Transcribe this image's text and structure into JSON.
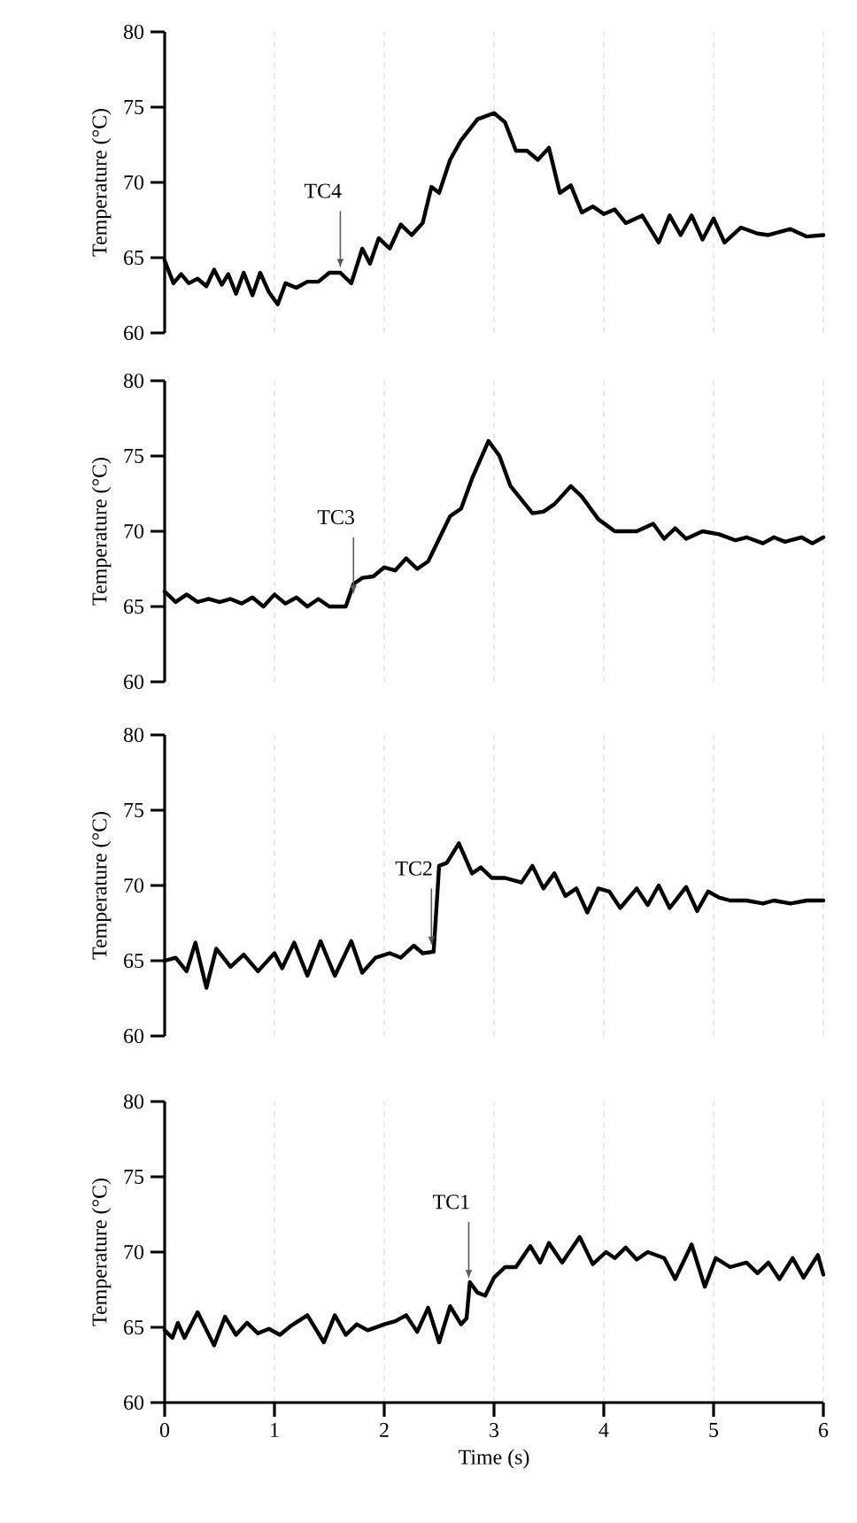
{
  "chart_data": [
    {
      "type": "line",
      "ylabel": "Temperature (°C)",
      "xlim": [
        0,
        6
      ],
      "xticks": [
        0,
        1,
        2,
        3,
        4,
        5,
        6
      ],
      "ylim": [
        60,
        80
      ],
      "yticks": [
        60,
        65,
        70,
        75,
        80
      ],
      "grid": "x",
      "tick_labels": "y",
      "annotations": [
        {
          "text": "TC4",
          "x": 1.6,
          "y": 64.3
        }
      ],
      "series": [
        {
          "color": "#000000",
          "x": [
            0,
            0.08,
            0.15,
            0.22,
            0.3,
            0.38,
            0.45,
            0.52,
            0.58,
            0.65,
            0.72,
            0.8,
            0.87,
            0.95,
            1.03,
            1.1,
            1.2,
            1.3,
            1.4,
            1.5,
            1.6,
            1.7,
            1.8,
            1.87,
            1.95,
            2.05,
            2.15,
            2.25,
            2.35,
            2.43,
            2.5,
            2.6,
            2.7,
            2.85,
            3.0,
            3.1,
            3.2,
            3.3,
            3.4,
            3.5,
            3.6,
            3.7,
            3.8,
            3.9,
            4.0,
            4.1,
            4.2,
            4.35,
            4.5,
            4.6,
            4.7,
            4.8,
            4.9,
            5.0,
            5.1,
            5.25,
            5.4,
            5.5,
            5.7,
            5.85,
            6.0
          ],
          "values": [
            64.8,
            63.3,
            63.9,
            63.3,
            63.6,
            63.1,
            64.2,
            63.2,
            63.9,
            62.6,
            64.0,
            62.5,
            64.0,
            62.7,
            61.9,
            63.3,
            63.0,
            63.4,
            63.4,
            64.0,
            64.0,
            63.3,
            65.6,
            64.6,
            66.3,
            65.6,
            67.2,
            66.5,
            67.3,
            69.7,
            69.3,
            71.5,
            72.8,
            74.2,
            74.6,
            74.0,
            72.1,
            72.1,
            71.5,
            72.3,
            69.3,
            69.8,
            68.0,
            68.4,
            67.9,
            68.2,
            67.3,
            67.8,
            66.0,
            67.8,
            66.5,
            67.8,
            66.2,
            67.6,
            66.0,
            67.0,
            66.6,
            66.5,
            66.9,
            66.4,
            66.5
          ]
        }
      ]
    },
    {
      "type": "line",
      "ylabel": "Temperature (°C)",
      "xlim": [
        0,
        6
      ],
      "xticks": [
        0,
        1,
        2,
        3,
        4,
        5,
        6
      ],
      "ylim": [
        60,
        80
      ],
      "yticks": [
        60,
        65,
        70,
        75,
        80
      ],
      "grid": "x",
      "tick_labels": "y",
      "annotations": [
        {
          "text": "TC3",
          "x": 1.72,
          "y": 65.8
        }
      ],
      "series": [
        {
          "color": "#000000",
          "x": [
            0,
            0.1,
            0.2,
            0.3,
            0.4,
            0.5,
            0.6,
            0.7,
            0.8,
            0.9,
            1.0,
            1.1,
            1.2,
            1.3,
            1.4,
            1.5,
            1.65,
            1.72,
            1.8,
            1.9,
            2.0,
            2.1,
            2.2,
            2.3,
            2.4,
            2.5,
            2.6,
            2.7,
            2.8,
            2.95,
            3.05,
            3.15,
            3.35,
            3.45,
            3.55,
            3.7,
            3.8,
            3.95,
            4.1,
            4.3,
            4.45,
            4.55,
            4.65,
            4.75,
            4.9,
            5.05,
            5.2,
            5.3,
            5.45,
            5.55,
            5.65,
            5.8,
            5.9,
            6.0
          ],
          "values": [
            66.0,
            65.3,
            65.8,
            65.3,
            65.5,
            65.3,
            65.5,
            65.2,
            65.6,
            65.0,
            65.8,
            65.2,
            65.6,
            65.0,
            65.5,
            65.0,
            65.0,
            66.5,
            66.9,
            67.0,
            67.6,
            67.4,
            68.2,
            67.5,
            68.0,
            69.5,
            71.0,
            71.5,
            73.5,
            76.0,
            75.0,
            73.0,
            71.2,
            71.3,
            71.8,
            73.0,
            72.3,
            70.8,
            70.0,
            70.0,
            70.5,
            69.5,
            70.2,
            69.5,
            70.0,
            69.8,
            69.4,
            69.6,
            69.2,
            69.6,
            69.3,
            69.6,
            69.2,
            69.6
          ]
        }
      ]
    },
    {
      "type": "line",
      "ylabel": "Temperature (°C)",
      "xlim": [
        0,
        6
      ],
      "xticks": [
        0,
        1,
        2,
        3,
        4,
        5,
        6
      ],
      "ylim": [
        60,
        80
      ],
      "yticks": [
        60,
        65,
        70,
        75,
        80
      ],
      "grid": "x",
      "tick_labels": "y",
      "annotations": [
        {
          "text": "TC2",
          "x": 2.43,
          "y": 66.0
        }
      ],
      "series": [
        {
          "color": "#000000",
          "x": [
            0,
            0.1,
            0.2,
            0.28,
            0.38,
            0.47,
            0.6,
            0.72,
            0.85,
            1.0,
            1.07,
            1.18,
            1.3,
            1.42,
            1.55,
            1.7,
            1.8,
            1.92,
            2.05,
            2.15,
            2.27,
            2.35,
            2.45,
            2.5,
            2.57,
            2.68,
            2.8,
            2.88,
            2.98,
            3.1,
            3.25,
            3.35,
            3.45,
            3.55,
            3.65,
            3.75,
            3.85,
            3.95,
            4.05,
            4.15,
            4.3,
            4.4,
            4.5,
            4.6,
            4.75,
            4.85,
            4.95,
            5.05,
            5.15,
            5.3,
            5.45,
            5.55,
            5.7,
            5.85,
            6.0
          ],
          "values": [
            65.0,
            65.2,
            64.3,
            66.2,
            63.2,
            65.8,
            64.6,
            65.4,
            64.3,
            65.5,
            64.5,
            66.2,
            64.0,
            66.3,
            64.0,
            66.3,
            64.2,
            65.2,
            65.5,
            65.2,
            66.0,
            65.5,
            65.6,
            71.3,
            71.5,
            72.8,
            70.8,
            71.2,
            70.5,
            70.5,
            70.2,
            71.3,
            69.8,
            70.8,
            69.3,
            69.8,
            68.2,
            69.8,
            69.6,
            68.5,
            69.8,
            68.7,
            70.0,
            68.5,
            69.9,
            68.3,
            69.6,
            69.2,
            69.0,
            69.0,
            68.8,
            69.0,
            68.8,
            69.0,
            69.0
          ]
        }
      ]
    },
    {
      "type": "line",
      "xlabel": "Time (s)",
      "ylabel": "Temperature (°C)",
      "xlim": [
        0,
        6
      ],
      "xticks": [
        0,
        1,
        2,
        3,
        4,
        5,
        6
      ],
      "ylim": [
        60,
        80
      ],
      "yticks": [
        60,
        65,
        70,
        75,
        80
      ],
      "grid": "x",
      "annotations": [
        {
          "text": "TC1",
          "x": 2.77,
          "y": 68.2
        }
      ],
      "series": [
        {
          "color": "#000000",
          "x": [
            0,
            0.07,
            0.12,
            0.18,
            0.3,
            0.45,
            0.55,
            0.65,
            0.75,
            0.85,
            0.95,
            1.05,
            1.15,
            1.3,
            1.45,
            1.55,
            1.65,
            1.75,
            1.85,
            2.0,
            2.1,
            2.2,
            2.3,
            2.4,
            2.5,
            2.6,
            2.7,
            2.75,
            2.78,
            2.85,
            2.92,
            3.0,
            3.1,
            3.2,
            3.33,
            3.42,
            3.5,
            3.62,
            3.78,
            3.9,
            4.02,
            4.1,
            4.2,
            4.3,
            4.4,
            4.55,
            4.65,
            4.8,
            4.92,
            5.02,
            5.15,
            5.3,
            5.4,
            5.5,
            5.6,
            5.72,
            5.82,
            5.95,
            6.0
          ],
          "values": [
            64.8,
            64.3,
            65.3,
            64.3,
            66.0,
            63.8,
            65.7,
            64.5,
            65.3,
            64.6,
            64.9,
            64.5,
            65.1,
            65.8,
            64.0,
            65.8,
            64.5,
            65.2,
            64.8,
            65.2,
            65.4,
            65.8,
            64.7,
            66.3,
            64.0,
            66.4,
            65.2,
            65.6,
            68.0,
            67.3,
            67.1,
            68.3,
            69.0,
            69.0,
            70.4,
            69.3,
            70.6,
            69.3,
            71.0,
            69.2,
            70.0,
            69.6,
            70.3,
            69.5,
            70.0,
            69.6,
            68.2,
            70.5,
            67.7,
            69.6,
            69.0,
            69.3,
            68.6,
            69.3,
            68.2,
            69.6,
            68.3,
            69.8,
            68.5
          ]
        }
      ]
    }
  ]
}
